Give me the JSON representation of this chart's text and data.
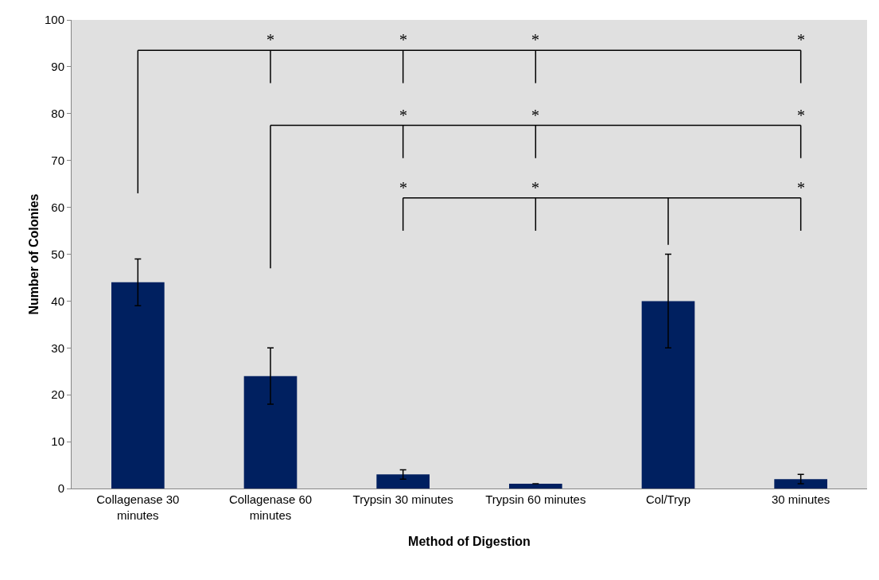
{
  "chart_data": {
    "type": "bar",
    "xlabel": "Method of Digestion",
    "ylabel": "Number of Colonies",
    "categories": [
      "Collagenase 30 minutes",
      "Collagenase 60 minutes",
      "Trypsin 30 minutes",
      "Trypsin 60 minutes",
      "Col/Tryp",
      "30 minutes"
    ],
    "values": [
      44,
      24,
      3,
      1,
      40,
      2
    ],
    "errors": [
      5,
      6,
      1,
      null,
      10,
      1
    ],
    "color": "#002060",
    "ylim": [
      0,
      100
    ],
    "yticks": [
      0,
      10,
      20,
      30,
      40,
      50,
      60,
      70,
      80,
      90,
      100
    ],
    "grid": false,
    "annotations": [
      "*",
      "*",
      "*",
      "*",
      "*",
      "*",
      "*",
      "*",
      "*",
      "*"
    ]
  }
}
